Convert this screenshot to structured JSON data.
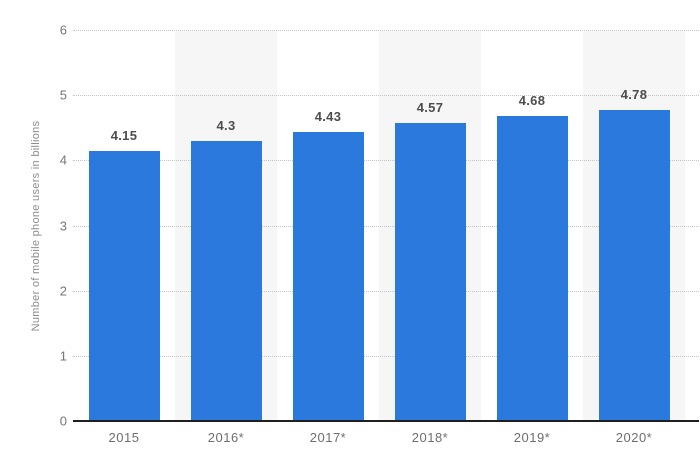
{
  "chart_data": {
    "type": "bar",
    "title": "",
    "xlabel": "",
    "ylabel": "Number of mobile phone users in billions",
    "categories": [
      "2015",
      "2016*",
      "2017*",
      "2018*",
      "2019*",
      "2020*"
    ],
    "values": [
      4.15,
      4.3,
      4.43,
      4.57,
      4.68,
      4.78
    ],
    "value_labels": [
      "4.15",
      "4.3",
      "4.43",
      "4.57",
      "4.68",
      "4.78"
    ],
    "ylim": [
      0,
      6
    ],
    "yticks": [
      0,
      1,
      2,
      3,
      4,
      5,
      6
    ],
    "grid": "horizontal-dotted",
    "legend": "none",
    "shaded_columns": [
      1,
      3,
      5
    ],
    "colors": {
      "bar": "#2b79dc",
      "column_band": "#f6f6f6",
      "gridline": "#c6c6c6",
      "axis_line": "#1f1f1f",
      "tick_label": "#767676",
      "x_tick_label": "#6e6e6e",
      "value_label": "#4d4d4d",
      "y_axis_title": "#8c8c8c",
      "background": "#ffffff"
    }
  }
}
